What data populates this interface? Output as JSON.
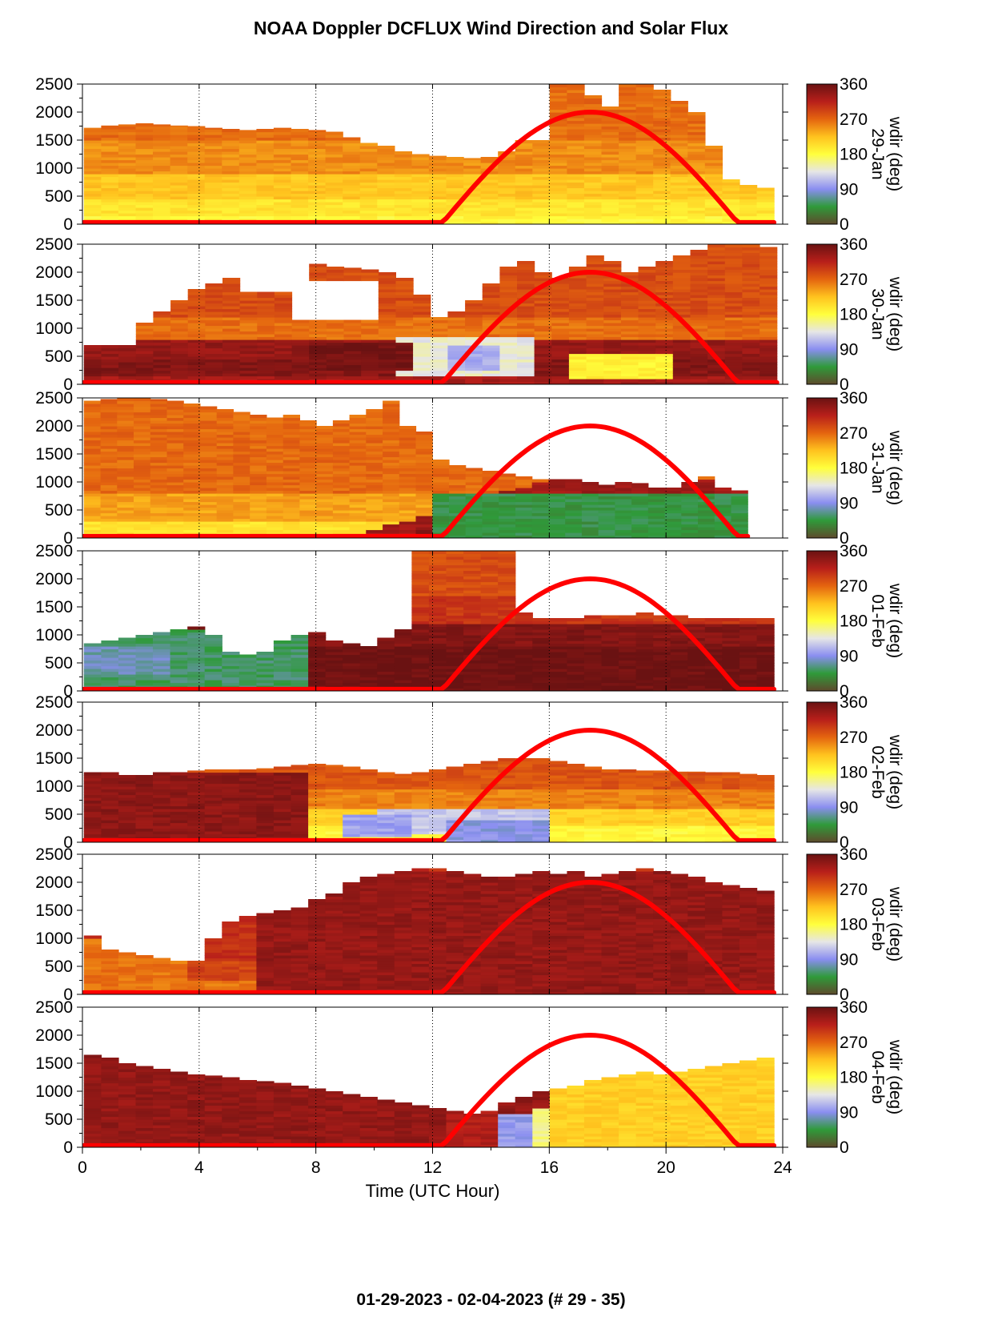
{
  "title": "NOAA Doppler DCFLUX Wind Direction and Solar Flux",
  "footer": "01-29-2023 - 02-04-2023   (# 29 - 35)",
  "chart_data": {
    "type": "heatmap",
    "title": "NOAA Doppler DCFLUX Wind Direction and Solar Flux",
    "xlabel": "Time (UTC Hour)",
    "xlim": [
      0,
      24
    ],
    "xticks": [
      0,
      4,
      8,
      12,
      16,
      20,
      24
    ],
    "ylim": [
      0,
      2500
    ],
    "yticks": [
      0,
      500,
      1000,
      1500,
      2000,
      2500
    ],
    "colorbar": {
      "label": "wdir (deg)",
      "ticks": [
        0,
        90,
        180,
        270,
        360
      ],
      "colors": [
        "#5e4a2c",
        "#2f9a3a",
        "#8a8ef0",
        "#e6e6e6",
        "#ffff3c",
        "#ffc21e",
        "#e4640f",
        "#b81f1a",
        "#6a1212"
      ]
    },
    "solar_flux": {
      "color": "#ff0000",
      "sunrise_hour": 12.3,
      "peak_hour": 17.4,
      "sunset_hour": 22.5,
      "peak_height": 2000
    },
    "panels": [
      {
        "date": "29-Jan",
        "top": [
          1720,
          1760,
          1780,
          1800,
          1780,
          1760,
          1750,
          1720,
          1700,
          1680,
          1700,
          1720,
          1700,
          1680,
          1650,
          1550,
          1450,
          1400,
          1300,
          1250,
          1220,
          1200,
          1180,
          1200,
          1300,
          1550,
          2500,
          2500,
          2500,
          2300,
          2100,
          2500,
          2500,
          2400,
          2200,
          2000,
          1400,
          800,
          700,
          650
        ],
        "x_end": 23.7,
        "gaps": [
          [
            13.3,
            15.8,
            1480,
            2500
          ]
        ],
        "layers": [
          [
            2500,
            266
          ],
          [
            1500,
            250
          ],
          [
            900,
            220
          ],
          [
            450,
            200
          ],
          [
            150,
            185
          ]
        ]
      },
      {
        "date": "30-Jan",
        "top": [
          700,
          700,
          700,
          1100,
          1300,
          1500,
          1700,
          1800,
          1900,
          2000,
          2050,
          2080,
          2100,
          2150,
          2100,
          2080,
          2050,
          2000,
          1900,
          1600,
          1200,
          1300,
          1500,
          1800,
          2100,
          2200,
          2000,
          1900,
          2100,
          2300,
          2200,
          2000,
          2100,
          2200,
          2300,
          2400,
          2500,
          2500,
          2500,
          2450
        ],
        "x_end": 23.8,
        "gaps": [
          [
            7,
            10.3,
            1150,
            1850
          ],
          [
            5.2,
            7.5,
            1650,
            2500
          ]
        ],
        "layers": [
          [
            2500,
            285
          ],
          [
            1200,
            265
          ],
          [
            780,
            335
          ],
          [
            450,
            345
          ],
          [
            150,
            325
          ]
        ],
        "blobs": [
          [
            11,
            15.5,
            150,
            850,
            140
          ],
          [
            12.5,
            14.5,
            250,
            700,
            105
          ],
          [
            16.5,
            20.5,
            80,
            550,
            190
          ],
          [
            8,
            11.5,
            250,
            750,
            355
          ]
        ]
      },
      {
        "date": "31-Jan",
        "top": [
          2450,
          2480,
          2500,
          2500,
          2480,
          2450,
          2400,
          2350,
          2300,
          2250,
          2200,
          2150,
          2200,
          2100,
          2000,
          2100,
          2200,
          2300,
          2450,
          2000,
          1900,
          1400,
          1300,
          1250,
          1200,
          1150,
          1100,
          1050,
          1050,
          1050,
          1000,
          950,
          1000,
          980,
          900,
          900,
          1000,
          1100,
          900,
          850
        ],
        "x_end": 22.8,
        "layers": [
          [
            2500,
            268
          ],
          [
            800,
            240
          ],
          [
            300,
            200
          ]
        ],
        "diag": {
          "x0": 9,
          "x1": 16,
          "h0": 0,
          "h1": 1050,
          "colors": [
            [
              350,
              330
            ],
            [
              150,
              350
            ]
          ]
        },
        "blobs": [
          [
            12,
            22.8,
            0,
            800,
            45
          ]
        ]
      },
      {
        "date": "01-Feb",
        "top": [
          850,
          900,
          950,
          1000,
          1050,
          1100,
          1150,
          1000,
          700,
          650,
          700,
          900,
          1000,
          1050,
          900,
          850,
          800,
          950,
          1100,
          2500,
          2500,
          2500,
          2500,
          2500,
          2500,
          1400,
          1300,
          1300,
          1300,
          1350,
          1350,
          1350,
          1400,
          1350,
          1350,
          1300,
          1300,
          1300,
          1300,
          1300
        ],
        "x_end": 23.7,
        "layers": [
          [
            2500,
            285
          ],
          [
            1700,
            300
          ],
          [
            1200,
            345
          ],
          [
            800,
            358
          ]
        ],
        "blobs": [
          [
            0,
            7.7,
            0,
            1100,
            55
          ],
          [
            0,
            3,
            300,
            800,
            75
          ]
        ]
      },
      {
        "date": "02-Feb",
        "top": [
          1250,
          1250,
          1200,
          1200,
          1250,
          1250,
          1280,
          1300,
          1300,
          1300,
          1320,
          1350,
          1380,
          1400,
          1380,
          1350,
          1300,
          1250,
          1220,
          1250,
          1300,
          1350,
          1400,
          1450,
          1500,
          1500,
          1500,
          1450,
          1400,
          1350,
          1300,
          1300,
          1280,
          1280,
          1260,
          1260,
          1250,
          1250,
          1220,
          1200
        ],
        "x_end": 23.7,
        "layers": [
          [
            1400,
            280
          ],
          [
            950,
            255
          ],
          [
            600,
            215
          ],
          [
            300,
            185
          ]
        ],
        "blobs": [
          [
            0,
            7.5,
            0,
            1250,
            340
          ],
          [
            10,
            16,
            150,
            600,
            120
          ],
          [
            12.5,
            16,
            0,
            400,
            90
          ],
          [
            9,
            11,
            100,
            500,
            100
          ]
        ]
      },
      {
        "date": "03-Feb",
        "top": [
          1050,
          800,
          750,
          700,
          650,
          600,
          600,
          1000,
          1300,
          1400,
          1450,
          1500,
          1550,
          1700,
          1800,
          2000,
          2100,
          2150,
          2200,
          2250,
          2250,
          2200,
          2150,
          2100,
          2100,
          2150,
          2200,
          2150,
          2200,
          2100,
          2150,
          2200,
          2250,
          2200,
          2150,
          2100,
          2000,
          1950,
          1900,
          1850
        ],
        "x_end": 23.7,
        "layers": [
          [
            2500,
            305
          ],
          [
            600,
            290
          ],
          [
            250,
            262
          ]
        ],
        "blobs": [
          [
            0,
            3.8,
            0,
            1000,
            262
          ],
          [
            6,
            23.7,
            0,
            2200,
            335
          ]
        ]
      },
      {
        "date": "04-Feb",
        "top": [
          1650,
          1600,
          1500,
          1450,
          1400,
          1350,
          1300,
          1280,
          1250,
          1200,
          1180,
          1150,
          1100,
          1050,
          1000,
          950,
          900,
          850,
          800,
          750,
          700,
          650,
          600,
          650,
          800,
          900,
          1000,
          1050,
          1100,
          1200,
          1250,
          1300,
          1350,
          1300,
          1350,
          1400,
          1450,
          1500,
          1550,
          1600
        ],
        "x_end": 23.7,
        "gaps": [
          [
            20.8,
            24,
            0,
            0
          ]
        ],
        "layers": [
          [
            2500,
            336
          ]
        ],
        "blobs": [
          [
            14.3,
            15.3,
            0,
            600,
            95
          ],
          [
            15.3,
            16.3,
            0,
            700,
            160
          ],
          [
            16.3,
            23.7,
            0,
            1800,
            215
          ],
          [
            12.5,
            14.3,
            0,
            700,
            320
          ]
        ]
      }
    ]
  }
}
